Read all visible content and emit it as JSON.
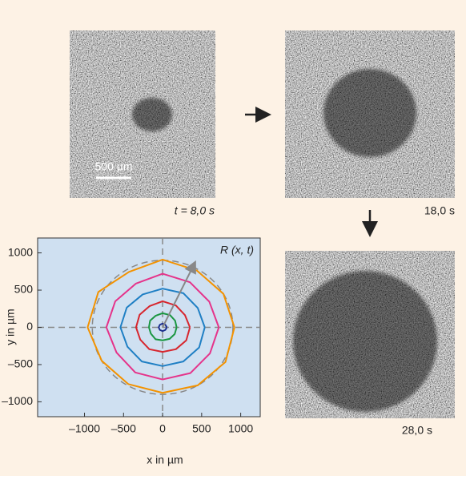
{
  "figure": {
    "panels": [
      {
        "time_label": "t = 8,0 s",
        "scale_bar_label": "500 µm"
      },
      {
        "time_label": "18,0 s"
      },
      {
        "time_label": "28,0 s"
      }
    ]
  },
  "chart_data": {
    "type": "line",
    "x_label": "x in µm",
    "y_label": "y in µm",
    "annotation": "R (x, t)",
    "xlim": [
      -1600,
      1250
    ],
    "ylim": [
      -1200,
      1200
    ],
    "xticks": [
      {
        "value": -1000,
        "label": "–1000"
      },
      {
        "value": -500,
        "label": "–500"
      },
      0,
      500,
      1000
    ],
    "yticks": [
      {
        "value": -1000,
        "label": "–1000"
      },
      {
        "value": -500,
        "label": "–500"
      },
      0,
      500,
      1000
    ],
    "reference_radius": 900,
    "series": [
      {
        "color": "#f39200",
        "x": [
          920,
          779,
          440,
          0,
          -430,
          -823,
          -960,
          -779,
          -440,
          0,
          450,
          805,
          920
        ],
        "y": [
          0,
          450,
          762,
          910,
          745,
          475,
          0,
          -450,
          -762,
          -880,
          -779,
          -465,
          0
        ]
      },
      {
        "color": "#e5338a",
        "x": [
          720,
          598,
          350,
          0,
          -340,
          -606,
          -720,
          -589,
          -350,
          0,
          355,
          606,
          720
        ],
        "y": [
          0,
          345,
          606,
          720,
          589,
          350,
          0,
          -340,
          -606,
          -700,
          -615,
          -350,
          0
        ]
      },
      {
        "color": "#1f7fc4",
        "x": [
          540,
          450,
          265,
          0,
          -255,
          -459,
          -540,
          -450,
          -265,
          0,
          265,
          468,
          540
        ],
        "y": [
          0,
          260,
          459,
          520,
          442,
          265,
          0,
          -260,
          -459,
          -520,
          -459,
          -270,
          0
        ]
      },
      {
        "color": "#d7262e",
        "x": [
          350,
          286,
          170,
          0,
          -165,
          -294,
          -340,
          -286,
          -170,
          0,
          170,
          303,
          350
        ],
        "y": [
          0,
          165,
          294,
          350,
          286,
          170,
          0,
          -165,
          -294,
          -330,
          -294,
          -175,
          0
        ]
      },
      {
        "color": "#1a9641",
        "x": [
          180,
          160,
          95,
          0,
          -90,
          -160,
          -175,
          -150,
          -90,
          0,
          90,
          155,
          180
        ],
        "y": [
          0,
          90,
          165,
          190,
          155,
          90,
          0,
          -85,
          -160,
          -175,
          -155,
          -90,
          0
        ]
      },
      {
        "color": "#1c2f8f",
        "x": [
          55,
          35,
          0,
          -35,
          -50,
          -35,
          0,
          35,
          55
        ],
        "y": [
          0,
          35,
          50,
          35,
          0,
          -35,
          -50,
          -35,
          0
        ]
      }
    ]
  }
}
